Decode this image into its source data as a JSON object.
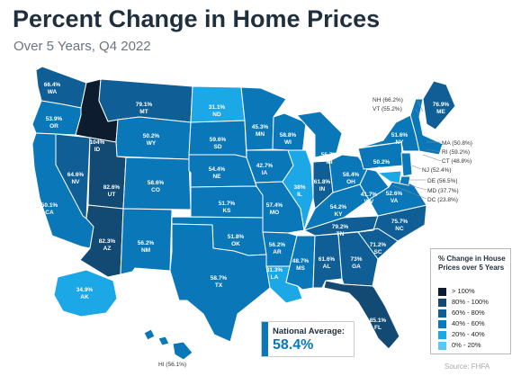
{
  "header": {
    "title": "Percent Change in Home Prices",
    "subtitle": "Over 5 Years, Q4 2022"
  },
  "colors": {
    "over100": "#0d1c2e",
    "80to100": "#124a73",
    "60to80": "#0f5f96",
    "40to60": "#0a78b8",
    "20to40": "#1ca7e6",
    "0to20": "#5cc7f0",
    "border": "#ffffff"
  },
  "legend": {
    "title": "% Change in House Prices over 5 Years",
    "items": [
      {
        "label": "> 100%",
        "color": "#0d1c2e"
      },
      {
        "label": "80% - 100%",
        "color": "#124a73"
      },
      {
        "label": "60% - 80%",
        "color": "#0f5f96"
      },
      {
        "label": "40% - 60%",
        "color": "#0a78b8"
      },
      {
        "label": "20% - 40%",
        "color": "#1ca7e6"
      },
      {
        "label": "0% - 20%",
        "color": "#5cc7f0"
      }
    ]
  },
  "national": {
    "label": "National Average:",
    "value": "58.4%"
  },
  "source": "Source: FHFA",
  "states": [
    {
      "id": "WA",
      "value": "66.4%",
      "bin": "60to80"
    },
    {
      "id": "OR",
      "value": "53.9%",
      "bin": "40to60"
    },
    {
      "id": "CA",
      "value": "50.1%",
      "bin": "40to60"
    },
    {
      "id": "NV",
      "value": "64.6%",
      "bin": "60to80"
    },
    {
      "id": "ID",
      "value": "104%",
      "bin": "over100"
    },
    {
      "id": "MT",
      "value": "79.1%",
      "bin": "60to80"
    },
    {
      "id": "WY",
      "value": "50.2%",
      "bin": "40to60"
    },
    {
      "id": "UT",
      "value": "82.6%",
      "bin": "80to100"
    },
    {
      "id": "AZ",
      "value": "82.3%",
      "bin": "80to100"
    },
    {
      "id": "CO",
      "value": "58.6%",
      "bin": "40to60"
    },
    {
      "id": "NM",
      "value": "56.2%",
      "bin": "40to60"
    },
    {
      "id": "ND",
      "value": "31.1%",
      "bin": "20to40"
    },
    {
      "id": "SD",
      "value": "59.6%",
      "bin": "40to60"
    },
    {
      "id": "NE",
      "value": "54.4%",
      "bin": "40to60"
    },
    {
      "id": "KS",
      "value": "51.7%",
      "bin": "40to60"
    },
    {
      "id": "OK",
      "value": "51.8%",
      "bin": "40to60"
    },
    {
      "id": "TX",
      "value": "58.7%",
      "bin": "40to60"
    },
    {
      "id": "MN",
      "value": "45.3%",
      "bin": "40to60"
    },
    {
      "id": "IA",
      "value": "42.7%",
      "bin": "40to60"
    },
    {
      "id": "MO",
      "value": "57.4%",
      "bin": "40to60"
    },
    {
      "id": "AR",
      "value": "56.2%",
      "bin": "40to60"
    },
    {
      "id": "LA",
      "value": "31.3%",
      "bin": "20to40"
    },
    {
      "id": "WI",
      "value": "58.8%",
      "bin": "40to60"
    },
    {
      "id": "IL",
      "value": "38%",
      "bin": "20to40"
    },
    {
      "id": "MS",
      "value": "48.7%",
      "bin": "40to60"
    },
    {
      "id": "MI",
      "value": "55.7%",
      "bin": "40to60"
    },
    {
      "id": "IN",
      "value": "61.8%",
      "bin": "60to80"
    },
    {
      "id": "KY",
      "value": "54.2%",
      "bin": "40to60"
    },
    {
      "id": "TN",
      "value": "79.2%",
      "bin": "60to80"
    },
    {
      "id": "AL",
      "value": "61.6%",
      "bin": "60to80"
    },
    {
      "id": "GA",
      "value": "73%",
      "bin": "60to80"
    },
    {
      "id": "FL",
      "value": "85.1%",
      "bin": "80to100"
    },
    {
      "id": "SC",
      "value": "71.2%",
      "bin": "60to80"
    },
    {
      "id": "NC",
      "value": "75.7%",
      "bin": "60to80"
    },
    {
      "id": "VA",
      "value": "52.6%",
      "bin": "40to60"
    },
    {
      "id": "WV",
      "value": "41.7%",
      "bin": "40to60"
    },
    {
      "id": "OH",
      "value": "58.4%",
      "bin": "40to60"
    },
    {
      "id": "PA",
      "value": "50.2%",
      "bin": "40to60"
    },
    {
      "id": "NY",
      "value": "51.6%",
      "bin": "40to60"
    },
    {
      "id": "ME",
      "value": "76.9%",
      "bin": "60to80"
    },
    {
      "id": "AK",
      "value": "34.9%",
      "bin": "20to40"
    }
  ],
  "callouts": {
    "nh": "NH (66.2%)",
    "vt": "VT (55.2%)",
    "ma": "MA (50.8%)",
    "ri": "RI (59.2%)",
    "ct": "CT (48.8%)",
    "nj": "NJ (52.4%)",
    "de": "DE (56.5%)",
    "md": "MD (37.7%)",
    "dc": "DC (23.8%)",
    "hi": "HI (56.1%)"
  }
}
